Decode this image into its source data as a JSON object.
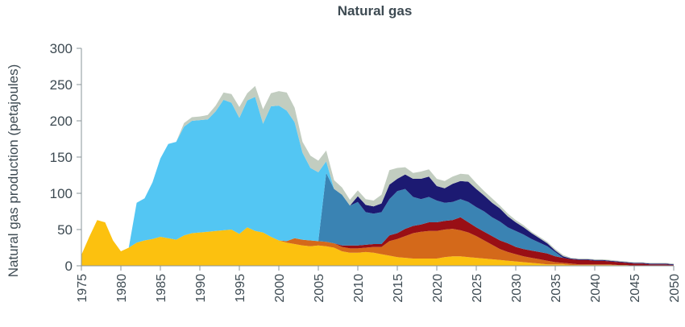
{
  "chart_data": {
    "type": "area",
    "title": "Natural gas",
    "xlabel": "",
    "ylabel": "Natural gas production (petajoules)",
    "xlim": [
      1975,
      2050
    ],
    "ylim": [
      0,
      300
    ],
    "x_ticks": [
      1975,
      1980,
      1985,
      1990,
      1995,
      2000,
      2005,
      2010,
      2015,
      2020,
      2025,
      2030,
      2035,
      2040,
      2045,
      2050
    ],
    "y_ticks": [
      0,
      50,
      100,
      150,
      200,
      250,
      300
    ],
    "grid": false,
    "legend": "none",
    "x": [
      1975,
      1976,
      1977,
      1978,
      1979,
      1980,
      1981,
      1982,
      1983,
      1984,
      1985,
      1986,
      1987,
      1988,
      1989,
      1990,
      1991,
      1992,
      1993,
      1994,
      1995,
      1996,
      1997,
      1998,
      1999,
      2000,
      2001,
      2002,
      2003,
      2004,
      2005,
      2006,
      2007,
      2008,
      2009,
      2010,
      2011,
      2012,
      2013,
      2014,
      2015,
      2016,
      2017,
      2018,
      2019,
      2020,
      2021,
      2022,
      2023,
      2024,
      2025,
      2026,
      2027,
      2028,
      2029,
      2030,
      2031,
      2032,
      2033,
      2034,
      2035,
      2036,
      2037,
      2038,
      2039,
      2040,
      2041,
      2042,
      2043,
      2044,
      2045,
      2046,
      2047,
      2048,
      2049,
      2050
    ],
    "series": [
      {
        "color": "#fcc10f",
        "values": [
          15,
          40,
          63,
          60,
          35,
          20,
          25,
          32,
          35,
          37,
          40,
          38,
          36,
          42,
          45,
          46,
          47,
          48,
          49,
          50,
          44,
          53,
          48,
          46,
          40,
          35,
          32,
          30,
          28,
          27,
          28,
          27,
          25,
          20,
          18,
          18,
          19,
          18,
          16,
          14,
          12,
          11,
          10,
          10,
          10,
          10,
          12,
          13,
          13,
          12,
          11,
          10,
          9,
          8,
          7,
          6,
          5,
          4,
          3,
          2,
          2,
          2,
          1,
          1,
          1,
          1,
          1,
          1,
          1,
          1,
          0,
          0,
          0,
          0,
          0,
          0
        ]
      },
      {
        "color": "#d4691a",
        "values": [
          0,
          0,
          0,
          0,
          0,
          0,
          0,
          0,
          0,
          0,
          0,
          0,
          0,
          0,
          0,
          0,
          0,
          0,
          0,
          0,
          0,
          0,
          0,
          0,
          0,
          0,
          2,
          8,
          8,
          8,
          6,
          6,
          6,
          6,
          6,
          6,
          6,
          8,
          10,
          20,
          25,
          30,
          35,
          37,
          38,
          38,
          38,
          38,
          36,
          34,
          30,
          25,
          20,
          15,
          12,
          10,
          8,
          7,
          6,
          5,
          3,
          2,
          2,
          1,
          1,
          1,
          1,
          1,
          0,
          0,
          0,
          0,
          0,
          0,
          0,
          0
        ]
      },
      {
        "color": "#990f15",
        "values": [
          0,
          0,
          0,
          0,
          0,
          0,
          0,
          0,
          0,
          0,
          0,
          0,
          0,
          0,
          0,
          0,
          0,
          0,
          0,
          0,
          0,
          0,
          0,
          0,
          0,
          0,
          0,
          0,
          0,
          0,
          0,
          0,
          0,
          2,
          4,
          4,
          4,
          4,
          4,
          8,
          8,
          10,
          10,
          10,
          12,
          12,
          12,
          12,
          18,
          14,
          12,
          12,
          12,
          12,
          12,
          10,
          10,
          10,
          10,
          10,
          8,
          7,
          6,
          6,
          6,
          5,
          5,
          4,
          4,
          3,
          3,
          3,
          2,
          2,
          2,
          1
        ]
      },
      {
        "color": "#3a83b3",
        "values": [
          0,
          0,
          0,
          0,
          0,
          0,
          0,
          0,
          0,
          0,
          0,
          0,
          0,
          0,
          0,
          0,
          0,
          0,
          0,
          0,
          0,
          0,
          0,
          0,
          0,
          0,
          0,
          0,
          0,
          0,
          0,
          95,
          75,
          70,
          55,
          60,
          45,
          42,
          44,
          50,
          58,
          55,
          40,
          35,
          35,
          30,
          25,
          25,
          25,
          28,
          28,
          28,
          26,
          26,
          22,
          22,
          20,
          16,
          13,
          10,
          6,
          0,
          0,
          0,
          0,
          0,
          0,
          0,
          0,
          0,
          0,
          0,
          0,
          0,
          0,
          0
        ]
      },
      {
        "color": "#53c6f3",
        "values": [
          0,
          0,
          0,
          0,
          0,
          0,
          0,
          55,
          58,
          78,
          108,
          130,
          135,
          150,
          155,
          155,
          155,
          165,
          180,
          175,
          160,
          175,
          185,
          150,
          180,
          186,
          180,
          160,
          120,
          100,
          95,
          16,
          0,
          0,
          0,
          0,
          0,
          0,
          0,
          0,
          0,
          0,
          0,
          0,
          0,
          0,
          0,
          0,
          0,
          0,
          0,
          0,
          0,
          0,
          0,
          0,
          0,
          0,
          0,
          0,
          0,
          0,
          0,
          0,
          0,
          0,
          0,
          0,
          0,
          0,
          0,
          0,
          0,
          0,
          0,
          0
        ]
      },
      {
        "color": "#1c1a72",
        "values": [
          0,
          0,
          0,
          0,
          0,
          0,
          0,
          0,
          0,
          0,
          0,
          0,
          0,
          0,
          0,
          0,
          0,
          0,
          0,
          0,
          0,
          0,
          0,
          0,
          0,
          0,
          0,
          0,
          0,
          0,
          0,
          0,
          0,
          0,
          0,
          8,
          10,
          10,
          12,
          20,
          17,
          20,
          25,
          28,
          28,
          20,
          20,
          25,
          25,
          28,
          25,
          22,
          20,
          18,
          15,
          12,
          10,
          8,
          6,
          4,
          2,
          2,
          1,
          1,
          1,
          1,
          1,
          1,
          1,
          1,
          1,
          1,
          1,
          1,
          1,
          1
        ]
      },
      {
        "color": "#c2cdc0",
        "values": [
          0,
          0,
          0,
          0,
          0,
          0,
          0,
          0,
          0,
          0,
          0,
          0,
          0,
          5,
          5,
          5,
          6,
          8,
          10,
          12,
          15,
          10,
          15,
          20,
          18,
          20,
          25,
          20,
          15,
          17,
          16,
          15,
          12,
          10,
          8,
          8,
          8,
          8,
          12,
          20,
          15,
          10,
          8,
          10,
          10,
          10,
          10,
          10,
          10,
          10,
          8,
          6,
          6,
          4,
          4,
          3,
          3,
          2,
          2,
          2,
          2,
          2,
          1,
          1,
          1,
          1,
          1,
          1,
          1,
          1,
          1,
          1,
          1,
          1,
          1,
          1
        ]
      }
    ]
  }
}
